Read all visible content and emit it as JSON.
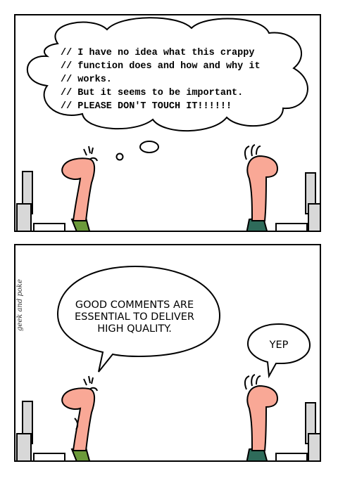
{
  "panel_1": {
    "code_comment_lines": [
      "// I have no idea what this crappy",
      "// function does and how and why it",
      "// works.",
      "// But it seems to be important.",
      "// PLEASE DON'T TOUCH IT!!!!!!"
    ]
  },
  "panel_2": {
    "left_speech_lines": [
      "GOOD COMMENTS ARE",
      "ESSENTIAL TO DELIVER",
      "HIGH QUALITY."
    ],
    "right_speech": "YEP",
    "credit": "geek and poke"
  },
  "colors": {
    "skin": "#f9a896",
    "left_shirt": "#6b9a3a",
    "right_shirt": "#2e6b5a",
    "monitor": "#d8d8d8"
  }
}
